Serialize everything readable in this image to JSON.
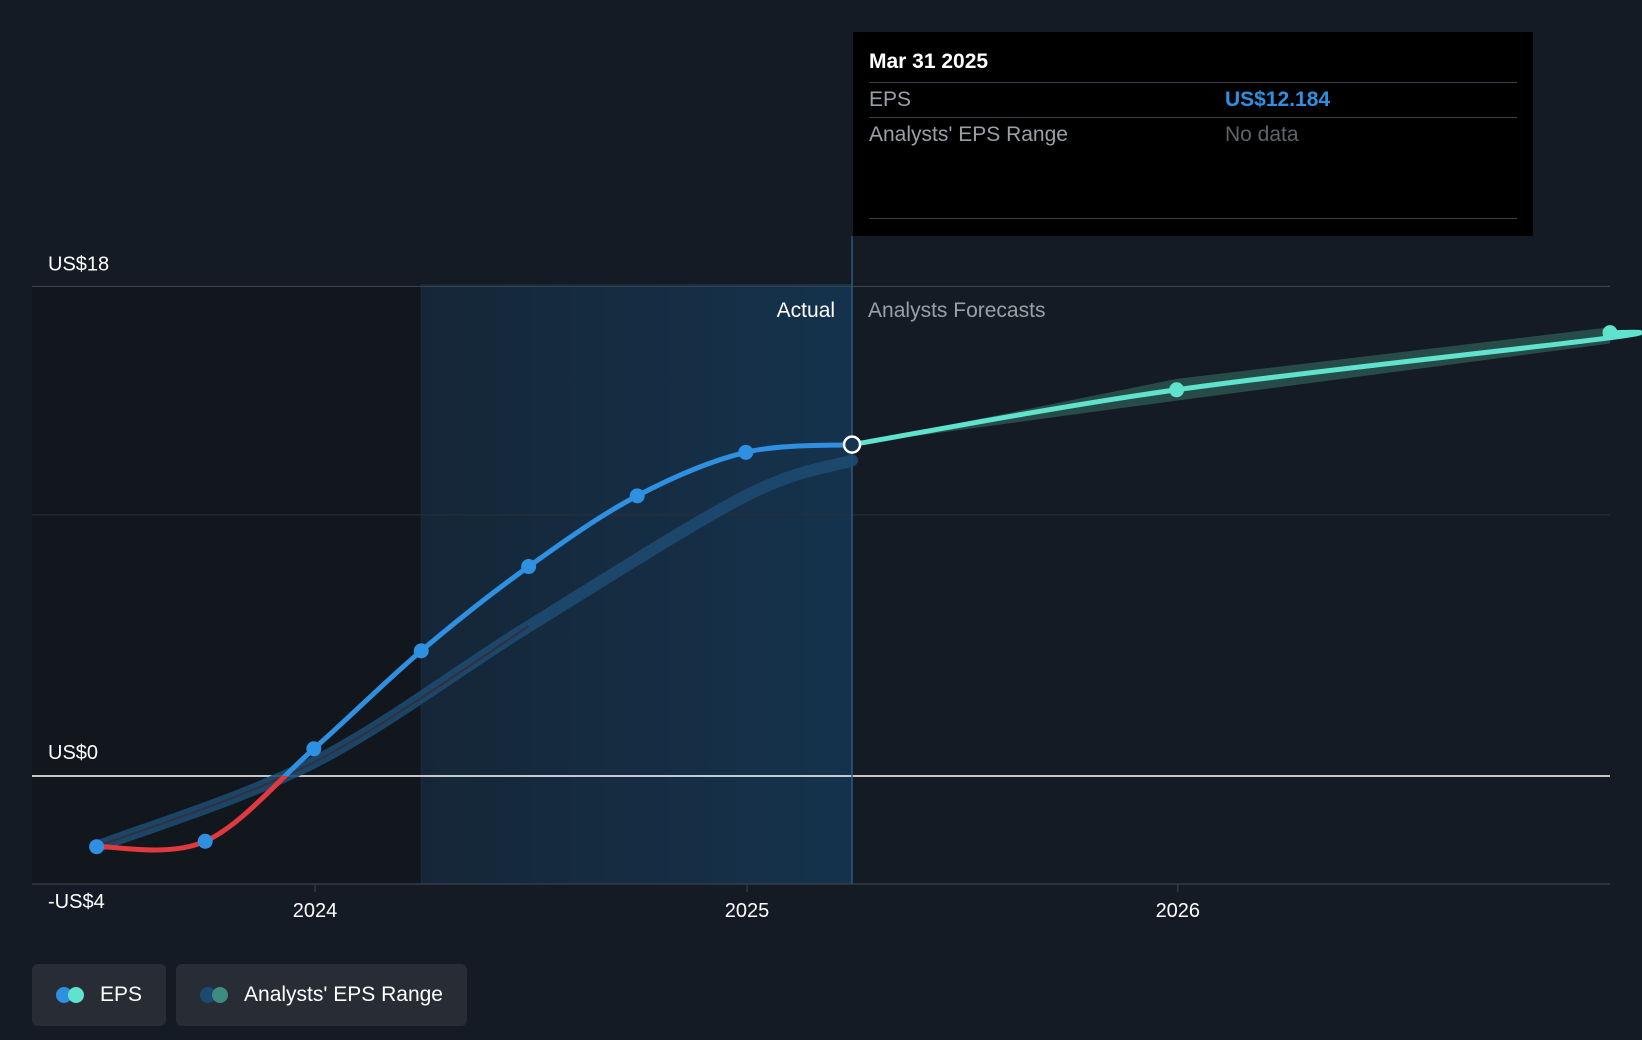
{
  "chart_data": {
    "type": "line",
    "x_ticks": [
      "2024",
      "2025",
      "2026"
    ],
    "y_ticks": [
      "US$18",
      "US$0",
      "-US$4"
    ],
    "ylim": [
      -4,
      18
    ],
    "region_labels": {
      "actual": "Actual",
      "forecast": "Analysts Forecasts"
    },
    "series": [
      {
        "name": "EPS",
        "points": [
          {
            "date": "2023-06-30",
            "value": -2.6
          },
          {
            "date": "2023-09-30",
            "value": -2.4
          },
          {
            "date": "2023-12-31",
            "value": 1.0
          },
          {
            "date": "2024-03-31",
            "value": 4.6
          },
          {
            "date": "2024-06-30",
            "value": 7.7
          },
          {
            "date": "2024-09-30",
            "value": 10.3
          },
          {
            "date": "2024-12-31",
            "value": 11.9
          },
          {
            "date": "2025-03-31",
            "value": 12.184
          }
        ]
      },
      {
        "name": "Analysts Forecasts",
        "points": [
          {
            "date": "2025-03-31",
            "value": 12.184
          },
          {
            "date": "2025-12-31",
            "value": 14.2
          },
          {
            "date": "2026-12-31",
            "value": 16.1
          }
        ]
      }
    ],
    "past_estimate_band": [
      {
        "date": "2023-06-30",
        "value": -2.6
      },
      {
        "date": "2023-12-31",
        "value": 0.5
      },
      {
        "date": "2024-06-30",
        "value": 5.5
      },
      {
        "date": "2024-12-31",
        "value": 10.3
      },
      {
        "date": "2025-03-31",
        "value": 11.6
      }
    ],
    "forecast_band": {
      "dates": [
        "2025-03-31",
        "2025-12-31",
        "2026-12-31"
      ],
      "low": [
        12.184,
        13.8,
        15.8
      ],
      "high": [
        12.184,
        14.6,
        16.4
      ]
    },
    "highlight_date": "2025-03-31",
    "colors": {
      "eps_positive": "#2f8fe0",
      "eps_negative": "#e0393e",
      "forecast": "#5fe3cc",
      "band_past": "#1d4a70",
      "band_forecast": "#2a5450",
      "actual_shade": "#15344f"
    }
  },
  "tooltip": {
    "date": "Mar 31 2025",
    "rows": [
      {
        "key": "EPS",
        "value": "US$12.184"
      },
      {
        "key": "Analysts' EPS Range",
        "value": "No data"
      }
    ]
  },
  "legend": [
    {
      "label": "EPS",
      "colors": [
        "#2f8fe0",
        "#5fe3cc"
      ]
    },
    {
      "label": "Analysts' EPS Range",
      "colors": [
        "#1d4a70",
        "#3e8b83"
      ]
    }
  ]
}
